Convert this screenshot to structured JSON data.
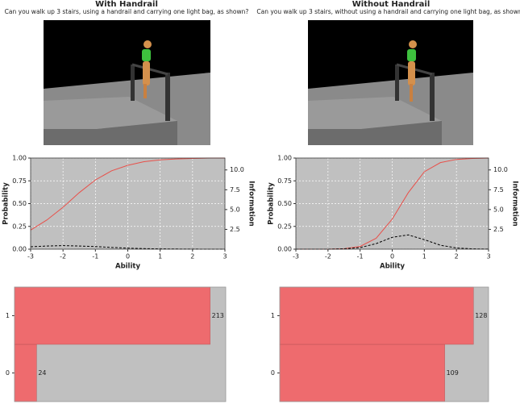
{
  "panels": [
    {
      "title": "With Handrail",
      "question": "Can you walk up 3 stairs, using a handrail and carrying one light bag, as shown?"
    },
    {
      "title": "Without Handrail",
      "question": "Can you walk up 3 stairs, without using a handrail and carrying one light bag, as shown?"
    }
  ],
  "chart_data": [
    {
      "type": "line",
      "xlabel": "Ability",
      "ylabel": "Probability",
      "y2label": "Information",
      "x": [
        -3,
        -2.5,
        -2,
        -1.5,
        -1,
        -0.5,
        0,
        0.5,
        1,
        1.5,
        2,
        2.5,
        3
      ],
      "xlim": [
        -3,
        3
      ],
      "xticks": [
        -3,
        -2,
        -1,
        0,
        1,
        2,
        3
      ],
      "ylim": [
        0,
        1
      ],
      "yticks": [
        {
          "value": 0,
          "label": "0.00"
        },
        {
          "value": 0.25,
          "label": "0.25"
        },
        {
          "value": 0.5,
          "label": "0.50"
        },
        {
          "value": 0.75,
          "label": "0.75"
        },
        {
          "value": 1,
          "label": "1.00"
        }
      ],
      "y2lim": [
        0,
        11.5
      ],
      "y2ticks": [
        2.5,
        {
          "value": 5,
          "label": "5.0"
        },
        7.5,
        {
          "value": 10,
          "label": "10.0"
        }
      ],
      "grid": true,
      "series": [
        {
          "color": "#e8504a",
          "linestyle": "solid",
          "values": [
            0.21,
            0.32,
            0.46,
            0.62,
            0.76,
            0.86,
            0.92,
            0.96,
            0.98,
            0.99,
            0.995,
            1,
            1
          ]
        },
        {
          "color": "#000000",
          "linestyle": "dashed",
          "axis": "y2",
          "values": [
            0.3,
            0.4,
            0.45,
            0.4,
            0.33,
            0.22,
            0.13,
            0.07,
            0.04,
            0.02,
            0.01,
            0,
            0
          ]
        }
      ]
    },
    {
      "type": "line",
      "xlabel": "Ability",
      "ylabel": "Probability",
      "y2label": "Information",
      "x": [
        -3,
        -2.5,
        -2,
        -1.5,
        -1,
        -0.5,
        0,
        0.5,
        1,
        1.5,
        2,
        2.5,
        3
      ],
      "xlim": [
        -3,
        3
      ],
      "xticks": [
        -3,
        -2,
        -1,
        0,
        1,
        2,
        3
      ],
      "ylim": [
        0,
        1
      ],
      "yticks": [
        {
          "value": 0,
          "label": "0.00"
        },
        {
          "value": 0.25,
          "label": "0.25"
        },
        {
          "value": 0.5,
          "label": "0.50"
        },
        {
          "value": 0.75,
          "label": "0.75"
        },
        {
          "value": 1,
          "label": "1.00"
        }
      ],
      "y2lim": [
        0,
        11.5
      ],
      "y2ticks": [
        2.5,
        {
          "value": 5,
          "label": "5.0"
        },
        7.5,
        {
          "value": 10,
          "label": "10.0"
        }
      ],
      "grid": true,
      "series": [
        {
          "color": "#e8504a",
          "linestyle": "solid",
          "values": [
            0,
            0,
            0,
            0.005,
            0.03,
            0.12,
            0.33,
            0.62,
            0.85,
            0.95,
            0.985,
            0.995,
            1
          ]
        },
        {
          "color": "#000000",
          "linestyle": "dashed",
          "axis": "y2",
          "values": [
            0,
            0,
            0,
            0.05,
            0.2,
            0.7,
            1.5,
            1.8,
            1.2,
            0.5,
            0.15,
            0.04,
            0.01
          ]
        }
      ]
    },
    {
      "type": "barh",
      "categories": [
        "0",
        "1"
      ],
      "values": [
        24,
        213
      ],
      "color": "#ee6b6e",
      "xlim": [
        0,
        230
      ]
    },
    {
      "type": "barh",
      "categories": [
        "0",
        "1"
      ],
      "values": [
        109,
        128
      ],
      "color": "#ee6b6e",
      "xlim": [
        0,
        138
      ]
    }
  ]
}
